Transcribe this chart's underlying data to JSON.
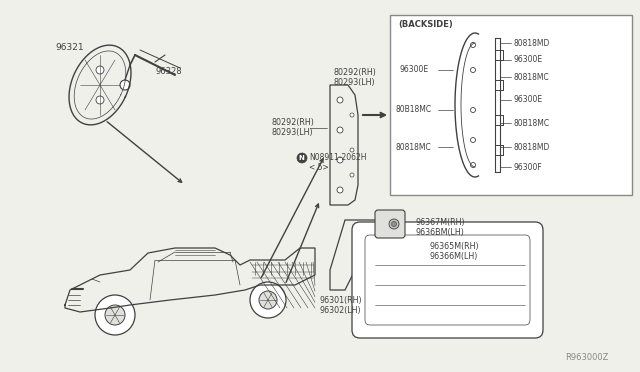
{
  "bg_color": "#f0f0eb",
  "line_color": "#404040",
  "text_color": "#404040",
  "fig_width": 6.4,
  "fig_height": 3.72,
  "dpi": 100,
  "labels": {
    "top_left_part": "96321",
    "top_left_part2": "96328",
    "backside_box": "(BACKSIDE)",
    "b80292rh_top": "80292(RH)",
    "b80293lh_top": "80293(LH)",
    "b96300e_left": "96300E",
    "b80292rh_2": "80292(RH)",
    "b80293lh_2": "80293(LH)",
    "b80818mc_left": "80B18MC",
    "b80818mc_left2": "80818MC",
    "n08911": "N08911-2062H",
    "n08911_5": "< 5>",
    "b80818md_r": "80818MD",
    "b96300e_r1": "96300E",
    "b80818mc_r1": "80818MC",
    "b96300e_r2": "96300E",
    "b80818mc_r2": "80B18MC",
    "b80818md_r2": "80818MD",
    "b96300f": "96300F",
    "b96367m": "96367M(RH)",
    "b9636bm": "9636BM(LH)",
    "b96365m": "96365M(RH)",
    "b96366m": "96366M(LH)",
    "b96301": "96301(RH)",
    "b96302": "96302(LH)",
    "watermark": "R963000Z",
    "n_marker": "N"
  }
}
